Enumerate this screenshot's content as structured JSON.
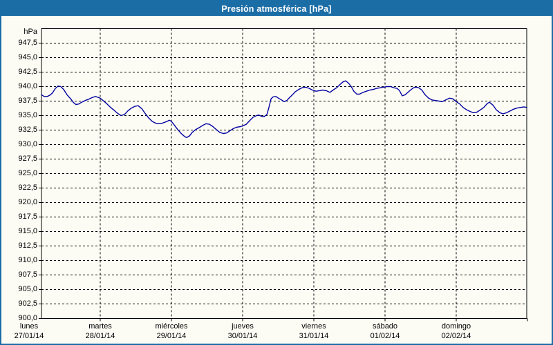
{
  "window": {
    "title": "Presión atmosférica [hPa]"
  },
  "colors": {
    "titlebar": "#1b6da6",
    "window_border": "#1b6da6",
    "background": "#fcfcf5",
    "line": "#0000a0",
    "grid": "#000000",
    "text": "#000000"
  },
  "chart_data": {
    "type": "line",
    "title": "Presión atmosférica [hPa]",
    "y_unit_label": "hPa",
    "ylim": [
      900,
      950
    ],
    "ytick_step": 2.5,
    "ytick_labels_top_to_bottom": [
      "947,5",
      "945,0",
      "942,5",
      "940,0",
      "937,5",
      "935,0",
      "932,5",
      "930,0",
      "927,5",
      "925,0",
      "922,5",
      "920,0",
      "917,5",
      "915,0",
      "912,5",
      "910,0",
      "907,5",
      "905,0",
      "902,5",
      "900,0"
    ],
    "grid": "dashed",
    "legend": "none",
    "x_days": [
      {
        "name": "lunes",
        "date": "27/01/14"
      },
      {
        "name": "martes",
        "date": "28/01/14"
      },
      {
        "name": "miércoles",
        "date": "29/01/14"
      },
      {
        "name": "jueves",
        "date": "30/01/14"
      },
      {
        "name": "viernes",
        "date": "31/01/14"
      },
      {
        "name": "sábado",
        "date": "01/02/14"
      },
      {
        "name": "domingo",
        "date": "02/02/14"
      }
    ],
    "series": [
      {
        "name": "Presión atmosférica",
        "unit": "hPa",
        "x_unit": "hours since lunes 27/01/14 00:00",
        "points": [
          [
            4.2,
            938.6
          ],
          [
            5.1,
            938.3
          ],
          [
            6.1,
            938.3
          ],
          [
            7.0,
            938.5
          ],
          [
            7.9,
            938.9
          ],
          [
            8.9,
            939.7
          ],
          [
            9.8,
            940.1
          ],
          [
            10.7,
            940.0
          ],
          [
            11.7,
            939.5
          ],
          [
            12.8,
            938.6
          ],
          [
            14.0,
            937.9
          ],
          [
            14.9,
            937.3
          ],
          [
            15.8,
            936.9
          ],
          [
            16.8,
            937.0
          ],
          [
            17.7,
            937.3
          ],
          [
            18.9,
            937.6
          ],
          [
            20.0,
            937.8
          ],
          [
            21.2,
            938.1
          ],
          [
            22.4,
            938.3
          ],
          [
            23.5,
            938.1
          ],
          [
            24.0,
            938.0
          ],
          [
            25.2,
            937.5
          ],
          [
            26.3,
            937.0
          ],
          [
            27.5,
            936.4
          ],
          [
            28.7,
            935.9
          ],
          [
            29.8,
            935.4
          ],
          [
            31.0,
            935.0
          ],
          [
            32.2,
            935.2
          ],
          [
            33.3,
            935.8
          ],
          [
            34.5,
            936.3
          ],
          [
            35.7,
            936.6
          ],
          [
            36.8,
            936.7
          ],
          [
            38.0,
            936.2
          ],
          [
            39.1,
            935.4
          ],
          [
            40.3,
            934.6
          ],
          [
            41.5,
            934.0
          ],
          [
            42.6,
            933.7
          ],
          [
            43.8,
            933.6
          ],
          [
            45.0,
            933.7
          ],
          [
            46.1,
            933.9
          ],
          [
            47.3,
            934.2
          ],
          [
            48.0,
            934.0
          ],
          [
            48.9,
            933.4
          ],
          [
            50.1,
            932.6
          ],
          [
            51.3,
            931.9
          ],
          [
            52.4,
            931.4
          ],
          [
            53.1,
            931.2
          ],
          [
            54.1,
            931.5
          ],
          [
            55.0,
            932.1
          ],
          [
            56.2,
            932.6
          ],
          [
            57.3,
            932.9
          ],
          [
            58.5,
            933.3
          ],
          [
            59.7,
            933.6
          ],
          [
            60.8,
            933.5
          ],
          [
            62.0,
            933.1
          ],
          [
            63.1,
            932.6
          ],
          [
            64.3,
            932.1
          ],
          [
            65.5,
            931.9
          ],
          [
            66.6,
            932.0
          ],
          [
            67.8,
            932.4
          ],
          [
            69.0,
            932.8
          ],
          [
            70.1,
            933.0
          ],
          [
            71.3,
            933.1
          ],
          [
            72.0,
            933.2
          ],
          [
            73.2,
            933.5
          ],
          [
            74.3,
            934.1
          ],
          [
            75.5,
            934.7
          ],
          [
            76.7,
            935.0
          ],
          [
            77.4,
            935.1
          ],
          [
            78.3,
            934.9
          ],
          [
            79.2,
            934.8
          ],
          [
            80.2,
            935.2
          ],
          [
            80.9,
            936.5
          ],
          [
            81.6,
            937.9
          ],
          [
            82.2,
            938.2
          ],
          [
            83.2,
            938.3
          ],
          [
            84.1,
            938.0
          ],
          [
            85.1,
            937.7
          ],
          [
            86.0,
            937.4
          ],
          [
            86.9,
            937.6
          ],
          [
            87.8,
            938.1
          ],
          [
            88.8,
            938.6
          ],
          [
            89.7,
            939.1
          ],
          [
            90.9,
            939.5
          ],
          [
            92.0,
            939.8
          ],
          [
            93.2,
            939.9
          ],
          [
            94.4,
            939.7
          ],
          [
            95.5,
            939.4
          ],
          [
            96.7,
            939.2
          ],
          [
            97.9,
            939.3
          ],
          [
            99.0,
            939.4
          ],
          [
            100.2,
            939.3
          ],
          [
            101.4,
            939.0
          ],
          [
            102.5,
            939.4
          ],
          [
            103.7,
            939.8
          ],
          [
            104.9,
            940.4
          ],
          [
            105.8,
            940.8
          ],
          [
            106.7,
            941.0
          ],
          [
            107.7,
            940.6
          ],
          [
            108.6,
            940.0
          ],
          [
            109.5,
            939.2
          ],
          [
            110.5,
            938.7
          ],
          [
            111.4,
            938.7
          ],
          [
            112.6,
            939.0
          ],
          [
            113.7,
            939.2
          ],
          [
            114.9,
            939.4
          ],
          [
            116.0,
            939.5
          ],
          [
            117.2,
            939.7
          ],
          [
            118.4,
            939.8
          ],
          [
            119.5,
            939.9
          ],
          [
            120.7,
            940.0
          ],
          [
            121.9,
            940.0
          ],
          [
            123.0,
            939.8
          ],
          [
            124.0,
            939.7
          ],
          [
            124.9,
            939.3
          ],
          [
            125.8,
            938.4
          ],
          [
            126.8,
            938.6
          ],
          [
            127.7,
            939.0
          ],
          [
            128.6,
            939.4
          ],
          [
            129.6,
            939.8
          ],
          [
            130.5,
            939.9
          ],
          [
            131.4,
            939.8
          ],
          [
            132.4,
            939.4
          ],
          [
            133.5,
            938.6
          ],
          [
            134.7,
            938.0
          ],
          [
            135.8,
            937.7
          ],
          [
            137.0,
            937.6
          ],
          [
            138.2,
            937.5
          ],
          [
            139.3,
            937.4
          ],
          [
            140.5,
            937.7
          ],
          [
            141.7,
            938.0
          ],
          [
            142.8,
            937.9
          ],
          [
            144.0,
            937.4
          ],
          [
            145.2,
            937.0
          ],
          [
            146.3,
            936.4
          ],
          [
            147.5,
            936.0
          ],
          [
            148.7,
            935.7
          ],
          [
            149.8,
            935.5
          ],
          [
            151.0,
            935.6
          ],
          [
            152.2,
            936.0
          ],
          [
            153.3,
            936.4
          ],
          [
            154.5,
            937.1
          ],
          [
            155.2,
            937.3
          ],
          [
            156.4,
            936.8
          ],
          [
            157.5,
            936.0
          ],
          [
            158.7,
            935.5
          ],
          [
            159.8,
            935.3
          ],
          [
            161.0,
            935.5
          ],
          [
            162.2,
            935.8
          ],
          [
            163.3,
            936.1
          ],
          [
            164.5,
            936.3
          ],
          [
            165.7,
            936.4
          ],
          [
            166.8,
            936.5
          ],
          [
            167.8,
            936.4
          ]
        ]
      }
    ]
  }
}
